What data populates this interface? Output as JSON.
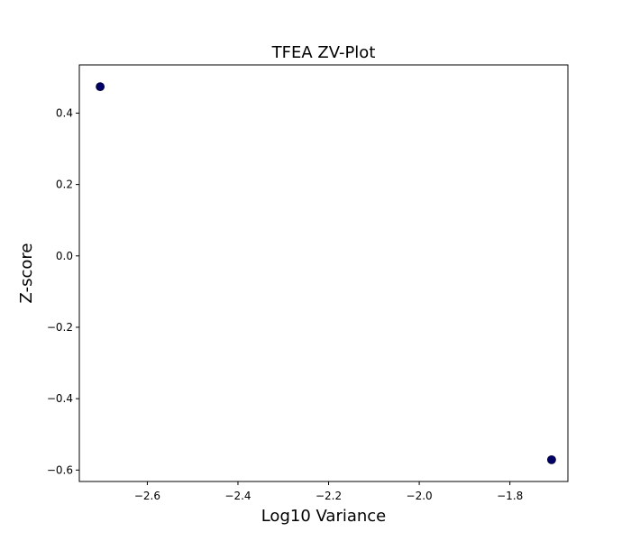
{
  "chart_data": {
    "type": "scatter",
    "title": "TFEA ZV-Plot",
    "xlabel": "Log10 Variance",
    "ylabel": "Z-score",
    "xlim": [
      -2.75,
      -1.672
    ],
    "ylim": [
      -0.632,
      0.535
    ],
    "x_ticks": [
      -2.6,
      -2.4,
      -2.2,
      -2.0,
      -1.8
    ],
    "x_tick_labels": [
      "−2.6",
      "−2.4",
      "−2.2",
      "−2.0",
      "−1.8"
    ],
    "y_ticks": [
      0.4,
      0.2,
      0.0,
      -0.2,
      -0.4,
      -0.6
    ],
    "y_tick_labels": [
      "0.4",
      "0.2",
      "0.0",
      "−0.2",
      "−0.4",
      "−0.6"
    ],
    "grid": false,
    "marker_color": "#000066",
    "points": [
      {
        "x": -2.704,
        "y": 0.474
      },
      {
        "x": -1.708,
        "y": -0.571
      }
    ]
  }
}
